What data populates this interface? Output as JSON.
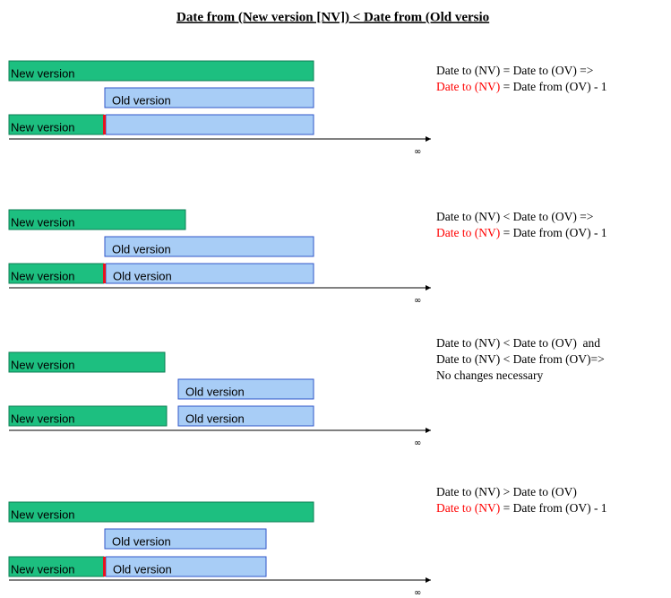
{
  "title": "Date from (New version [NV]) < Date from (Old versio",
  "infinity": "∞",
  "new_color": "#1dbf80",
  "old_color": "#a8cdf6",
  "marker_color": "#e8141e",
  "scenarios": [
    {
      "labels": [
        "New version",
        "Old version",
        "New version"
      ],
      "notes": [
        [
          {
            "text": "Date to (NV) = Date to (OV) =>"
          }
        ],
        [
          {
            "text": "Date to (NV)",
            "color": "#ff0000"
          },
          {
            "text": " = Date from (OV) - 1"
          }
        ]
      ]
    },
    {
      "labels": [
        "New version",
        "Old version",
        "New version",
        "Old version"
      ],
      "notes": [
        [
          {
            "text": "Date to (NV) < Date to (OV) =>"
          }
        ],
        [
          {
            "text": "Date to (NV)",
            "color": "#ff0000"
          },
          {
            "text": " = Date from (OV) - 1"
          }
        ]
      ]
    },
    {
      "labels": [
        "New version",
        "Old version",
        "New version",
        "Old version"
      ],
      "notes": [
        [
          {
            "text": "Date to (NV) < Date to (OV)  and"
          }
        ],
        [
          {
            "text": "Date to (NV) < Date from (OV)=>"
          }
        ],
        [
          {
            "text": "No changes necessary"
          }
        ]
      ]
    },
    {
      "labels": [
        "New version",
        "Old version",
        "New version",
        "Old version"
      ],
      "notes": [
        [
          {
            "text": "Date to (NV) > Date to (OV)"
          }
        ],
        [
          {
            "text": "Date to (NV)",
            "color": "#ff0000"
          },
          {
            "text": " = Date from (OV) - 1"
          }
        ]
      ]
    }
  ]
}
